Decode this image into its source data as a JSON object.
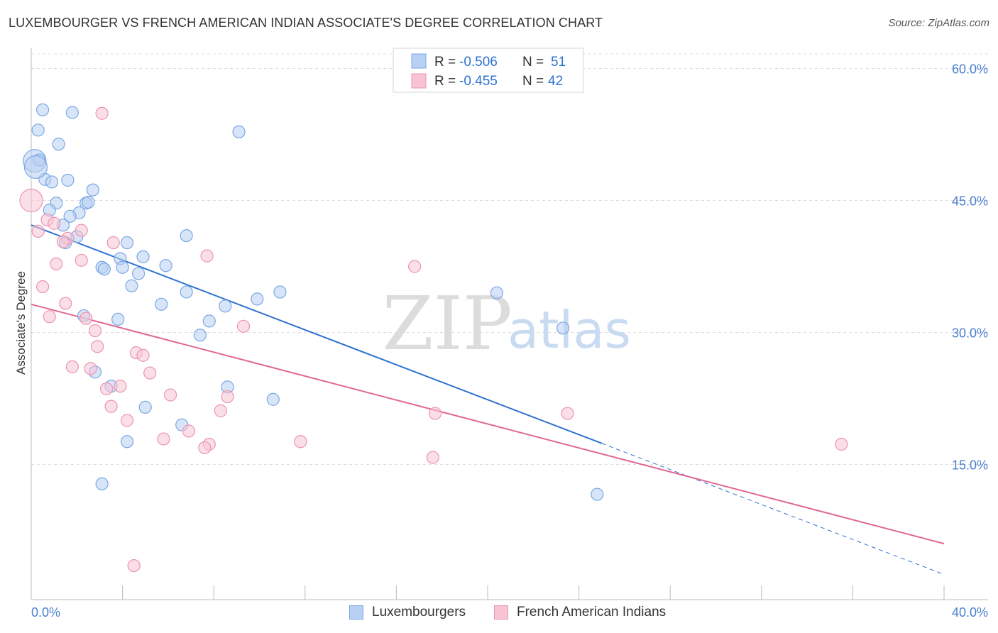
{
  "header": {
    "title": "LUXEMBOURGER VS FRENCH AMERICAN INDIAN ASSOCIATE'S DEGREE CORRELATION CHART",
    "source": "Source: ZipAtlas.com"
  },
  "watermark": {
    "zip": "ZIP",
    "atlas": "atlas"
  },
  "colors": {
    "blue_fill": "#b8d0f3",
    "blue_stroke": "#7aa8e4",
    "blue_line": "#2f72d0",
    "pink_fill": "#f8c4d4",
    "pink_stroke": "#ec94b0",
    "pink_line": "#e06794",
    "axis_label": "#4b7ecf",
    "grid": "#dddddd"
  },
  "legend_top": {
    "row1": {
      "r_label": "R = ",
      "r_value": "-0.506",
      "n_label": "N = ",
      "n_value": "51"
    },
    "row2": {
      "r_label": "R = ",
      "r_value": "-0.455",
      "n_label": "N = ",
      "n_value": "42"
    }
  },
  "legend_bottom": {
    "series1": "Luxembourgers",
    "series2": "French American Indians"
  },
  "chart_data": {
    "type": "scatter",
    "title": "LUXEMBOURGER VS FRENCH AMERICAN INDIAN ASSOCIATE'S DEGREE CORRELATION CHART",
    "xlabel": "",
    "ylabel": "Associate's Degree",
    "xlim": [
      0,
      40
    ],
    "ylim": [
      0,
      62
    ],
    "x_tick_labels": [
      "0.0%",
      "40.0%"
    ],
    "y_ticks": [
      15,
      30,
      45,
      60
    ],
    "y_tick_labels": [
      "15.0%",
      "30.0%",
      "45.0%",
      "60.0%"
    ],
    "grid": true,
    "legend": "top-center",
    "series": [
      {
        "name": "Luxembourgers",
        "r": -0.506,
        "n": 51,
        "points": [
          [
            0.5,
            55.3
          ],
          [
            0.3,
            53.0
          ],
          [
            1.8,
            55.0
          ],
          [
            9.1,
            52.8
          ],
          [
            1.2,
            51.4
          ],
          [
            0.15,
            49.5
          ],
          [
            0.35,
            49.6
          ],
          [
            0.6,
            47.4
          ],
          [
            0.9,
            47.1
          ],
          [
            1.6,
            47.3
          ],
          [
            2.7,
            46.2
          ],
          [
            1.1,
            44.7
          ],
          [
            2.4,
            44.7
          ],
          [
            2.5,
            44.8
          ],
          [
            0.8,
            43.9
          ],
          [
            2.1,
            43.6
          ],
          [
            1.7,
            43.2
          ],
          [
            1.4,
            42.2
          ],
          [
            6.8,
            41.0
          ],
          [
            2.0,
            40.9
          ],
          [
            1.5,
            40.2
          ],
          [
            4.2,
            40.2
          ],
          [
            4.9,
            38.6
          ],
          [
            3.9,
            38.4
          ],
          [
            3.1,
            37.4
          ],
          [
            3.2,
            37.2
          ],
          [
            4.0,
            37.4
          ],
          [
            5.9,
            37.6
          ],
          [
            4.7,
            36.7
          ],
          [
            4.4,
            35.3
          ],
          [
            6.8,
            34.6
          ],
          [
            10.9,
            34.6
          ],
          [
            9.9,
            33.8
          ],
          [
            5.7,
            33.2
          ],
          [
            8.5,
            33.0
          ],
          [
            20.4,
            34.5
          ],
          [
            2.3,
            31.9
          ],
          [
            3.8,
            31.5
          ],
          [
            7.8,
            31.3
          ],
          [
            7.4,
            29.7
          ],
          [
            23.3,
            30.5
          ],
          [
            2.8,
            25.5
          ],
          [
            3.5,
            23.9
          ],
          [
            8.6,
            23.8
          ],
          [
            10.6,
            22.4
          ],
          [
            5.0,
            21.5
          ],
          [
            6.6,
            19.5
          ],
          [
            4.2,
            17.6
          ],
          [
            3.1,
            12.8
          ],
          [
            24.8,
            11.6
          ],
          [
            0.2,
            48.8
          ]
        ]
      },
      {
        "name": "French American Indians",
        "r": -0.455,
        "n": 42,
        "points": [
          [
            3.1,
            54.9
          ],
          [
            0.0,
            45.0
          ],
          [
            0.7,
            42.8
          ],
          [
            1.0,
            42.4
          ],
          [
            0.3,
            41.5
          ],
          [
            2.2,
            41.6
          ],
          [
            1.6,
            40.7
          ],
          [
            3.6,
            40.2
          ],
          [
            1.4,
            40.3
          ],
          [
            7.7,
            38.7
          ],
          [
            2.2,
            38.2
          ],
          [
            1.1,
            37.8
          ],
          [
            16.8,
            37.5
          ],
          [
            0.5,
            35.2
          ],
          [
            1.5,
            33.3
          ],
          [
            0.8,
            31.8
          ],
          [
            2.4,
            31.6
          ],
          [
            9.3,
            30.7
          ],
          [
            2.8,
            30.2
          ],
          [
            2.9,
            28.4
          ],
          [
            4.6,
            27.7
          ],
          [
            4.9,
            27.4
          ],
          [
            1.8,
            26.1
          ],
          [
            2.6,
            25.9
          ],
          [
            5.2,
            25.4
          ],
          [
            3.3,
            23.6
          ],
          [
            3.9,
            23.9
          ],
          [
            6.1,
            22.9
          ],
          [
            8.6,
            22.7
          ],
          [
            3.5,
            21.6
          ],
          [
            8.3,
            21.1
          ],
          [
            17.7,
            20.8
          ],
          [
            23.5,
            20.8
          ],
          [
            4.2,
            20.0
          ],
          [
            6.9,
            18.8
          ],
          [
            5.8,
            17.9
          ],
          [
            11.8,
            17.6
          ],
          [
            7.8,
            17.3
          ],
          [
            7.6,
            16.9
          ],
          [
            35.5,
            17.3
          ],
          [
            17.6,
            15.8
          ],
          [
            4.5,
            3.5
          ]
        ]
      }
    ],
    "trend_lines": [
      {
        "series": "Luxembourgers",
        "x0": 0,
        "y0": 42.2,
        "x1": 25.0,
        "y1": 17.4,
        "dashed_to_x": 40,
        "dashed_to_y": 2.5
      },
      {
        "series": "French American Indians",
        "x0": 0,
        "y0": 33.2,
        "x1": 40,
        "y1": 6.0
      }
    ]
  }
}
